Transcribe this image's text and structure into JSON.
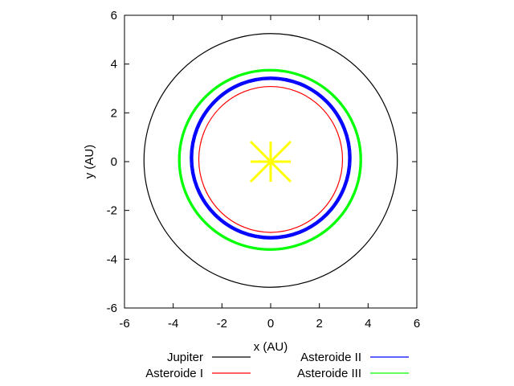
{
  "chart_data": {
    "type": "line",
    "title": "",
    "xlabel": "x (AU)",
    "ylabel": "y (AU)",
    "xlim": [
      -6,
      6
    ],
    "ylim": [
      -6,
      6
    ],
    "xticks": [
      -6,
      -4,
      -2,
      0,
      2,
      4,
      6
    ],
    "yticks": [
      -6,
      -4,
      -2,
      0,
      2,
      4,
      6
    ],
    "grid": false,
    "legend_position": "bottom",
    "series": [
      {
        "name": "Jupiter",
        "color": "#000000",
        "shape": "ellipse",
        "x_range": [
          -5.2,
          5.2
        ],
        "y_range": [
          -5.15,
          5.25
        ],
        "tracks": 1
      },
      {
        "name": "Asteroide I",
        "color": "#ff0000",
        "shape": "ellipse",
        "x_range": [
          -2.95,
          2.95
        ],
        "y_range": [
          -2.9,
          3.08
        ],
        "tracks": 1
      },
      {
        "name": "Asteroide II",
        "color": "#0000ff",
        "shape": "ellipse",
        "x_range": [
          -3.25,
          3.25
        ],
        "y_range": [
          -3.12,
          3.42
        ],
        "tracks": 4
      },
      {
        "name": "Asteroide III",
        "color": "#00ff00",
        "shape": "ellipse",
        "x_range": [
          -3.75,
          3.7
        ],
        "y_range": [
          -3.6,
          3.75
        ],
        "tracks": 3
      }
    ],
    "sun": {
      "x": 0,
      "y": 0,
      "color": "#ffff00",
      "icon": "star-burst-icon"
    }
  }
}
